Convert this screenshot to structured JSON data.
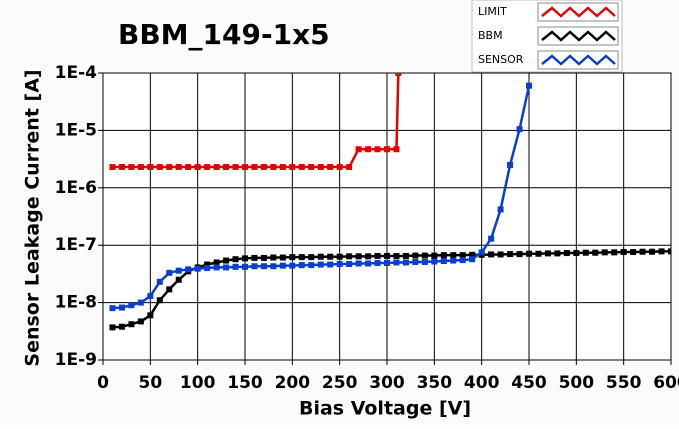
{
  "chart_data": {
    "type": "line",
    "title": "BBM_149-1x5",
    "x_label": "Bias Voltage [V]",
    "y_label": "Sensor Leakage Current [A]",
    "log_y": true,
    "grid": true,
    "legend": "top-right",
    "xlim": [
      0,
      600
    ],
    "xticks": [
      0,
      50,
      100,
      150,
      200,
      250,
      300,
      350,
      400,
      450,
      500,
      550,
      600
    ],
    "ylim": [
      1e-09,
      0.0001
    ],
    "yticks": [
      {
        "value": 1e-09,
        "label": "1E-9"
      },
      {
        "value": 1e-08,
        "label": "1E-8"
      },
      {
        "value": 1e-07,
        "label": "1E-7"
      },
      {
        "value": 1e-06,
        "label": "1E-6"
      },
      {
        "value": 1e-05,
        "label": "1E-5"
      },
      {
        "value": 0.0001,
        "label": "1E-4"
      }
    ],
    "series": [
      {
        "name": "LIMIT",
        "color": "#e00000",
        "x": [
          10,
          20,
          30,
          40,
          50,
          60,
          70,
          80,
          90,
          100,
          110,
          120,
          130,
          140,
          150,
          160,
          170,
          180,
          190,
          200,
          210,
          220,
          230,
          240,
          250,
          260,
          270,
          280,
          290,
          300,
          310,
          312
        ],
        "values": [
          2.3e-06,
          2.3e-06,
          2.3e-06,
          2.3e-06,
          2.3e-06,
          2.3e-06,
          2.3e-06,
          2.3e-06,
          2.3e-06,
          2.3e-06,
          2.3e-06,
          2.3e-06,
          2.3e-06,
          2.3e-06,
          2.3e-06,
          2.3e-06,
          2.3e-06,
          2.3e-06,
          2.3e-06,
          2.3e-06,
          2.3e-06,
          2.3e-06,
          2.3e-06,
          2.3e-06,
          2.3e-06,
          2.3e-06,
          4.7e-06,
          4.7e-06,
          4.7e-06,
          4.7e-06,
          4.7e-06,
          0.0001
        ]
      },
      {
        "name": "BBM",
        "color": "#000000",
        "x": [
          10,
          20,
          30,
          40,
          50,
          60,
          70,
          80,
          90,
          100,
          110,
          120,
          130,
          140,
          150,
          160,
          170,
          180,
          190,
          200,
          210,
          220,
          230,
          240,
          250,
          260,
          270,
          280,
          290,
          300,
          310,
          320,
          330,
          340,
          350,
          360,
          370,
          380,
          390,
          400,
          410,
          420,
          430,
          440,
          450,
          460,
          470,
          480,
          490,
          500,
          510,
          520,
          530,
          540,
          550,
          560,
          570,
          580,
          590,
          600
        ],
        "values": [
          3.7e-09,
          3.8e-09,
          4.2e-09,
          4.7e-09,
          6e-09,
          1.1e-08,
          1.7e-08,
          2.5e-08,
          3.5e-08,
          4.1e-08,
          4.6e-08,
          5e-08,
          5.4e-08,
          5.7e-08,
          5.9e-08,
          6e-08,
          6e-08,
          6.1e-08,
          6.1e-08,
          6.2e-08,
          6.2e-08,
          6.2e-08,
          6.3e-08,
          6.3e-08,
          6.3e-08,
          6.4e-08,
          6.4e-08,
          6.4e-08,
          6.5e-08,
          6.5e-08,
          6.5e-08,
          6.5e-08,
          6.6e-08,
          6.6e-08,
          6.6e-08,
          6.7e-08,
          6.7e-08,
          6.7e-08,
          6.8e-08,
          6.8e-08,
          6.9e-08,
          6.9e-08,
          7e-08,
          7e-08,
          7.1e-08,
          7.1e-08,
          7.2e-08,
          7.2e-08,
          7.3e-08,
          7.3e-08,
          7.4e-08,
          7.4e-08,
          7.5e-08,
          7.5e-08,
          7.6e-08,
          7.6e-08,
          7.7e-08,
          7.7e-08,
          7.8e-08,
          7.8e-08
        ]
      },
      {
        "name": "SENSOR",
        "color": "#0a3fcc",
        "x": [
          10,
          20,
          30,
          40,
          50,
          60,
          70,
          80,
          90,
          100,
          110,
          120,
          130,
          140,
          150,
          160,
          170,
          180,
          190,
          200,
          210,
          220,
          230,
          240,
          250,
          260,
          270,
          280,
          290,
          300,
          310,
          320,
          330,
          340,
          350,
          360,
          370,
          380,
          390,
          400,
          410,
          420,
          430,
          440,
          450
        ],
        "values": [
          8e-09,
          8.2e-09,
          9e-09,
          1e-08,
          1.3e-08,
          2.3e-08,
          3.3e-08,
          3.6e-08,
          3.8e-08,
          3.9e-08,
          4e-08,
          4.1e-08,
          4.1e-08,
          4.2e-08,
          4.2e-08,
          4.3e-08,
          4.3e-08,
          4.3e-08,
          4.4e-08,
          4.4e-08,
          4.5e-08,
          4.5e-08,
          4.6e-08,
          4.6e-08,
          4.7e-08,
          4.7e-08,
          4.8e-08,
          4.8e-08,
          4.9e-08,
          4.9e-08,
          5e-08,
          5e-08,
          5.1e-08,
          5.1e-08,
          5.2e-08,
          5.3e-08,
          5.4e-08,
          5.5e-08,
          5.7e-08,
          7.5e-08,
          1.3e-07,
          4.2e-07,
          2.5e-06,
          1.05e-05,
          6e-05
        ]
      }
    ]
  }
}
